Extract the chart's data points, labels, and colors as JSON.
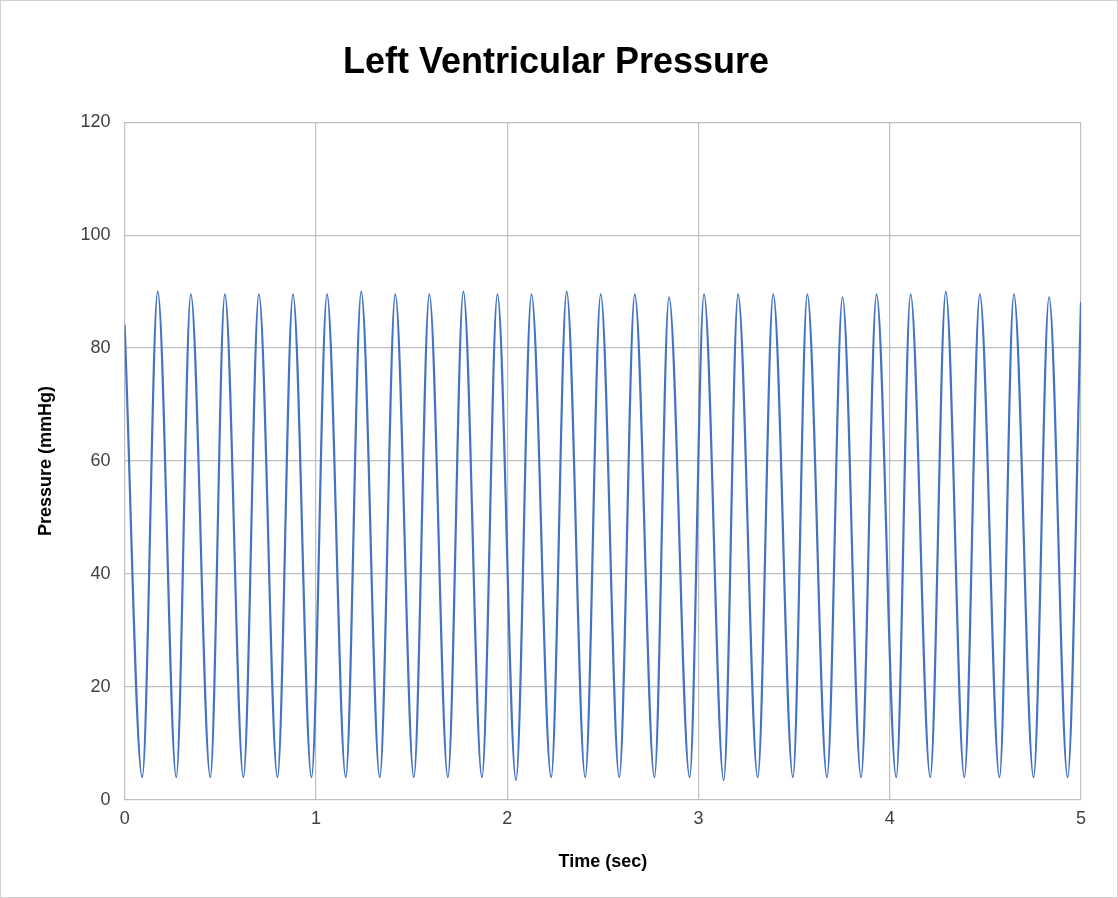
{
  "chart_data": {
    "type": "line",
    "title": "Left Ventricular Pressure",
    "xlabel": "Time (sec)",
    "ylabel": "Pressure (mmHg)",
    "xlim": [
      0,
      5
    ],
    "xticks": [
      0,
      1,
      2,
      3,
      4,
      5
    ],
    "ylim": [
      0,
      120
    ],
    "yticks": [
      0,
      20,
      40,
      60,
      80,
      100,
      120
    ],
    "grid": true,
    "legend": false,
    "marker": "none",
    "line_style": "solid",
    "series": [
      {
        "color": "#4472c4",
        "x": [
          0,
          0.092,
          0.173,
          0.27,
          0.346,
          0.448,
          0.524,
          0.621,
          0.702,
          0.799,
          0.88,
          0.977,
          1.058,
          1.156,
          1.237,
          1.334,
          1.415,
          1.512,
          1.593,
          1.69,
          1.771,
          1.868,
          1.949,
          2.046,
          2.127,
          2.23,
          2.311,
          2.408,
          2.489,
          2.586,
          2.667,
          2.77,
          2.846,
          2.954,
          3.029,
          3.132,
          3.207,
          3.31,
          3.391,
          3.494,
          3.569,
          3.672,
          3.753,
          3.85,
          3.931,
          4.034,
          4.109,
          4.212,
          4.293,
          4.39,
          4.471,
          4.574,
          4.649,
          4.752,
          4.833,
          4.93,
          5
        ],
        "values": [
          84,
          4,
          90,
          4,
          89.5,
          4,
          89.5,
          4,
          89.5,
          4,
          89.5,
          4,
          89.5,
          4,
          90,
          4,
          89.5,
          4,
          89.5,
          4,
          90,
          4,
          89.5,
          3.5,
          89.5,
          4,
          90,
          4,
          89.5,
          4,
          89.5,
          4,
          89,
          4,
          89.5,
          3.5,
          89.5,
          4,
          89.5,
          4,
          89.5,
          4,
          89,
          4,
          89.5,
          4,
          89.5,
          4,
          90,
          4,
          89.5,
          4,
          89.5,
          4,
          89,
          4,
          88
        ]
      }
    ]
  }
}
